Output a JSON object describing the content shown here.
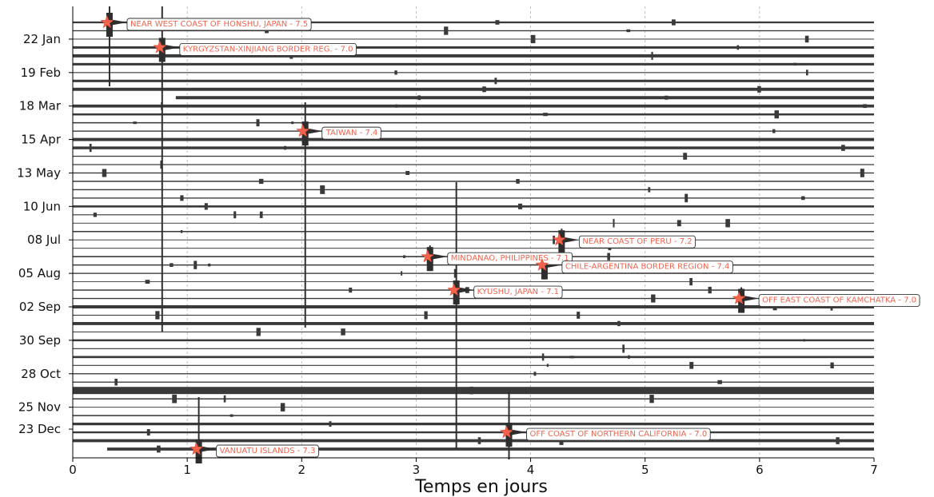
{
  "chart_data": {
    "type": "seismogram-helicorder",
    "xlabel": "Temps en jours",
    "xlim": [
      0,
      7
    ],
    "x_ticks": [
      0,
      1,
      2,
      3,
      4,
      5,
      6,
      7
    ],
    "y_tick_labels": [
      "22 Jan",
      "19 Feb",
      "18 Mar",
      "15 Apr",
      "13 May",
      "10 Jun",
      "08 Jul",
      "05 Aug",
      "02 Sep",
      "30 Sep",
      "28 Oct",
      "25 Nov",
      "23 Dec"
    ],
    "weeks_total": 52,
    "grid": "vertical dashed at integer days",
    "trace_color": "#3a3a3a",
    "marker_color": "#f0644f",
    "events": [
      {
        "week": 0,
        "day": 0.3,
        "label": "NEAR WEST COAST OF HONSHU, JAPAN - 7.5",
        "magnitude": 7.5
      },
      {
        "week": 3,
        "day": 0.76,
        "label": "KYRGYZSTAN-XINJIANG BORDER REG. - 7.0",
        "magnitude": 7.0
      },
      {
        "week": 13,
        "day": 2.01,
        "label": "TAIWAN - 7.4",
        "magnitude": 7.4
      },
      {
        "week": 26,
        "day": 4.25,
        "label": "NEAR COAST OF PERU - 7.2",
        "magnitude": 7.2
      },
      {
        "week": 28,
        "day": 3.1,
        "label": "MINDANAO, PHILIPPINES - 7.1",
        "magnitude": 7.1
      },
      {
        "week": 29,
        "day": 4.1,
        "label": "CHILE-ARGENTINA BORDER REGION - 7.4",
        "magnitude": 7.4
      },
      {
        "week": 32,
        "day": 3.33,
        "label": "KYUSHU, JAPAN - 7.1",
        "magnitude": 7.1
      },
      {
        "week": 33,
        "day": 5.82,
        "label": "OFF EAST COAST OF KAMCHATKA - 7.0",
        "magnitude": 7.0
      },
      {
        "week": 49,
        "day": 3.79,
        "label": "OFF COAST OF NORTHERN CALIFORNIA - 7.0",
        "magnitude": 7.0
      },
      {
        "week": 51,
        "day": 1.08,
        "label": "VANUATU ISLANDS - 7.3",
        "magnitude": 7.3
      }
    ]
  }
}
